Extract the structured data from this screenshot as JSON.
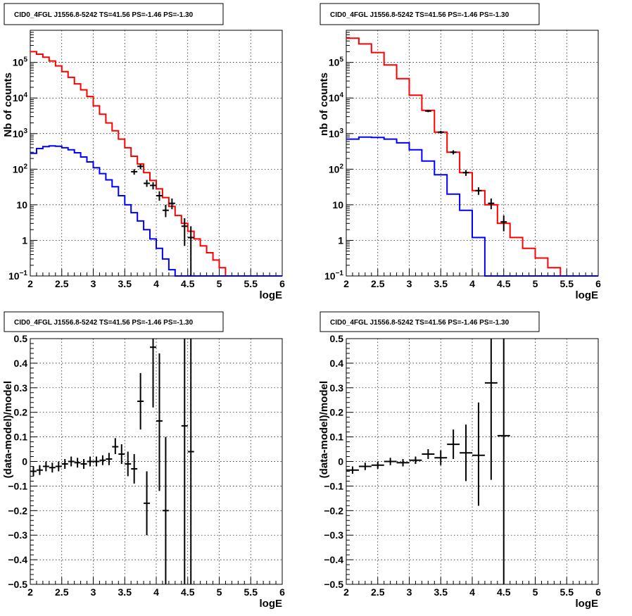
{
  "chart_data": [
    {
      "type": "line",
      "title": "CID0_4FGL J1556.8-5242 TS=41.56 PS=-1.46 PS=-1.30",
      "xlabel": "logE",
      "ylabel": "Nb of counts",
      "log_y": true,
      "xlim": [
        2,
        6
      ],
      "ylim": [
        0.1,
        800000
      ],
      "grid": true,
      "xticks": [
        "2",
        "2.5",
        "3",
        "3.5",
        "4",
        "4.5",
        "5",
        "5.5",
        "6"
      ],
      "yticks": [
        {
          "v": 0.1,
          "base": "10",
          "exp": "−1"
        },
        {
          "v": 1,
          "label": "1"
        },
        {
          "v": 10,
          "label": "10"
        },
        {
          "v": 100,
          "base": "10",
          "exp": "2"
        },
        {
          "v": 1000,
          "base": "10",
          "exp": "3"
        },
        {
          "v": 10000,
          "base": "10",
          "exp": "4"
        },
        {
          "v": 100000,
          "base": "10",
          "exp": "5"
        }
      ],
      "bin_edges": [
        2.0,
        2.1,
        2.2,
        2.3,
        2.4,
        2.5,
        2.6,
        2.7,
        2.8,
        2.9,
        3.0,
        3.1,
        3.2,
        3.3,
        3.4,
        3.5,
        3.6,
        3.7,
        3.8,
        3.9,
        4.0,
        4.1,
        4.2,
        4.3,
        4.4,
        4.5,
        4.6,
        4.7,
        4.8,
        4.9,
        5.0,
        5.1,
        5.2,
        5.3,
        5.4,
        5.5,
        5.6,
        5.7,
        5.8,
        5.9,
        6.0
      ],
      "series": [
        {
          "color": "#ff0000",
          "values": [
            200000,
            170000,
            140000,
            110000,
            80000,
            55000,
            38000,
            25000,
            17000,
            11000,
            6000,
            3500,
            2000,
            1200,
            700,
            400,
            230,
            140,
            80,
            48,
            28,
            16,
            9,
            5,
            3,
            1.8,
            1.1,
            0.7,
            0.45,
            0.28,
            0.17,
            0.1,
            0.1,
            0.1,
            0.1,
            0.1,
            0.1,
            0.1,
            0.1,
            0.1
          ]
        },
        {
          "color": "#0000ff",
          "values": [
            280,
            380,
            430,
            450,
            440,
            400,
            350,
            290,
            220,
            160,
            110,
            75,
            50,
            32,
            18,
            10,
            6,
            3.5,
            2,
            1.1,
            0.6,
            0.3,
            0.15,
            0.1,
            0.1,
            0.1,
            0.1,
            0.1,
            0.1,
            0.1,
            0.1,
            0.1,
            0.1,
            0.1,
            0.1,
            0.1,
            0.1,
            0.1,
            0.1,
            0.1
          ]
        }
      ],
      "points": [
        {
          "x": 3.65,
          "y": 85,
          "lo": 70,
          "hi": 100
        },
        {
          "x": 3.75,
          "y": 120,
          "lo": 100,
          "hi": 140
        },
        {
          "x": 3.85,
          "y": 40,
          "lo": 32,
          "hi": 50
        },
        {
          "x": 3.95,
          "y": 35,
          "lo": 27,
          "hi": 43
        },
        {
          "x": 4.05,
          "y": 18,
          "lo": 13,
          "hi": 24
        },
        {
          "x": 4.15,
          "y": 7,
          "lo": 4.5,
          "hi": 10
        },
        {
          "x": 4.25,
          "y": 11,
          "lo": 7.5,
          "hi": 15
        },
        {
          "x": 4.45,
          "y": 2.5,
          "lo": 0.7,
          "hi": 4.2
        },
        {
          "x": 4.55,
          "y": 1.2,
          "lo": 0.1,
          "hi": 2.5
        }
      ]
    },
    {
      "type": "line",
      "title": "CID0_4FGL J1556.8-5242 TS=41.56 PS=-1.46 PS=-1.30",
      "xlabel": "logE",
      "ylabel": "nb of counts",
      "log_y": true,
      "xlim": [
        2,
        6
      ],
      "ylim": [
        0.1,
        800000
      ],
      "grid": true,
      "xticks": [
        "2",
        "2.5",
        "3",
        "3.5",
        "4",
        "4.5",
        "5",
        "5.5",
        "6"
      ],
      "yticks": [
        {
          "v": 0.1,
          "base": "10",
          "exp": "−1"
        },
        {
          "v": 1,
          "label": "1"
        },
        {
          "v": 10,
          "label": "10"
        },
        {
          "v": 100,
          "base": "10",
          "exp": "2"
        },
        {
          "v": 1000,
          "base": "10",
          "exp": "3"
        },
        {
          "v": 10000,
          "base": "10",
          "exp": "4"
        },
        {
          "v": 100000,
          "base": "10",
          "exp": "5"
        }
      ],
      "bin_edges": [
        2.0,
        2.2,
        2.4,
        2.6,
        2.8,
        3.0,
        3.2,
        3.4,
        3.6,
        3.8,
        4.0,
        4.2,
        4.4,
        4.6,
        4.8,
        5.0,
        5.2,
        5.4,
        5.6,
        5.8,
        6.0
      ],
      "series": [
        {
          "color": "#ff0000",
          "values": [
            480000,
            330000,
            190000,
            85000,
            35000,
            12000,
            4500,
            1100,
            300,
            80,
            25,
            10,
            3,
            1.2,
            0.6,
            0.32,
            0.17,
            0.1,
            0.1,
            0.1
          ]
        },
        {
          "color": "#0000ff",
          "values": [
            700,
            800,
            780,
            700,
            550,
            350,
            170,
            70,
            20,
            7,
            1.2,
            0.1,
            0.1,
            0.1,
            0.1,
            0.1,
            0.1,
            0.1,
            0.1,
            0.1
          ]
        }
      ],
      "points": [
        {
          "x": 3.3,
          "y": 4300,
          "lo": 4000,
          "hi": 4600
        },
        {
          "x": 3.5,
          "y": 1100,
          "lo": 1000,
          "hi": 1200
        },
        {
          "x": 3.7,
          "y": 300,
          "lo": 260,
          "hi": 340
        },
        {
          "x": 3.9,
          "y": 80,
          "lo": 65,
          "hi": 95
        },
        {
          "x": 4.1,
          "y": 25,
          "lo": 19,
          "hi": 31
        },
        {
          "x": 4.3,
          "y": 11,
          "lo": 7.5,
          "hi": 15
        },
        {
          "x": 4.5,
          "y": 3.3,
          "lo": 1.8,
          "hi": 5
        }
      ]
    },
    {
      "type": "scatter",
      "title": "CID0_4FGL J1556.8-5242 TS=41.56 PS=-1.46 PS=-1.30",
      "xlabel": "logE",
      "ylabel": "(data-model)/model",
      "log_y": false,
      "xlim": [
        2,
        6
      ],
      "ylim": [
        -0.5,
        0.5
      ],
      "grid": true,
      "xticks": [
        "2",
        "2.5",
        "3",
        "3.5",
        "4",
        "4.5",
        "5",
        "5.5",
        "6"
      ],
      "yticks": [
        {
          "v": -0.5,
          "label": "−0.5"
        },
        {
          "v": -0.4,
          "label": "−0.4"
        },
        {
          "v": -0.3,
          "label": "−0.3"
        },
        {
          "v": -0.2,
          "label": "−0.2"
        },
        {
          "v": -0.1,
          "label": "−0.1"
        },
        {
          "v": 0,
          "label": "0"
        },
        {
          "v": 0.1,
          "label": "0.1"
        },
        {
          "v": 0.2,
          "label": "0.2"
        },
        {
          "v": 0.3,
          "label": "0.3"
        },
        {
          "v": 0.4,
          "label": "0.4"
        },
        {
          "v": 0.5,
          "label": "0.5"
        }
      ],
      "xerr": 0.05,
      "points": [
        {
          "x": 2.05,
          "y": -0.04,
          "lo": -0.06,
          "hi": -0.02
        },
        {
          "x": 2.15,
          "y": -0.035,
          "lo": -0.055,
          "hi": -0.015
        },
        {
          "x": 2.25,
          "y": -0.02,
          "lo": -0.04,
          "hi": 0.0
        },
        {
          "x": 2.35,
          "y": -0.025,
          "lo": -0.045,
          "hi": -0.005
        },
        {
          "x": 2.45,
          "y": -0.02,
          "lo": -0.04,
          "hi": 0.0
        },
        {
          "x": 2.55,
          "y": -0.01,
          "lo": -0.03,
          "hi": 0.01
        },
        {
          "x": 2.65,
          "y": 0.0,
          "lo": -0.02,
          "hi": 0.02
        },
        {
          "x": 2.75,
          "y": -0.005,
          "lo": -0.025,
          "hi": 0.015
        },
        {
          "x": 2.85,
          "y": -0.01,
          "lo": -0.03,
          "hi": 0.01
        },
        {
          "x": 2.95,
          "y": 0.0,
          "lo": -0.02,
          "hi": 0.02
        },
        {
          "x": 3.05,
          "y": 0.0,
          "lo": -0.02,
          "hi": 0.02
        },
        {
          "x": 3.15,
          "y": 0.005,
          "lo": -0.015,
          "hi": 0.025
        },
        {
          "x": 3.25,
          "y": 0.01,
          "lo": -0.015,
          "hi": 0.035
        },
        {
          "x": 3.35,
          "y": 0.06,
          "lo": 0.03,
          "hi": 0.095
        },
        {
          "x": 3.45,
          "y": 0.03,
          "lo": -0.01,
          "hi": 0.07
        },
        {
          "x": 3.55,
          "y": -0.01,
          "lo": -0.06,
          "hi": 0.04
        },
        {
          "x": 3.65,
          "y": -0.03,
          "lo": -0.09,
          "hi": 0.03
        },
        {
          "x": 3.75,
          "y": 0.245,
          "lo": 0.13,
          "hi": 0.36
        },
        {
          "x": 3.85,
          "y": -0.17,
          "lo": -0.3,
          "hi": -0.04
        },
        {
          "x": 3.95,
          "y": 0.465,
          "lo": 0.22,
          "hi": 0.5
        },
        {
          "x": 4.05,
          "y": 0.165,
          "lo": -0.12,
          "hi": 0.44
        },
        {
          "x": 4.15,
          "y": -0.2,
          "lo": -0.5,
          "hi": 0.1
        },
        {
          "x": 4.45,
          "y": 0.145,
          "lo": -0.5,
          "hi": 0.5
        },
        {
          "x": 4.55,
          "y": 0.04,
          "lo": -0.5,
          "hi": 0.5
        }
      ]
    },
    {
      "type": "scatter",
      "title": "CID0_4FGL J1556.8-5242 TS=41.56 PS=-1.46 PS=-1.30",
      "xlabel": "logE",
      "ylabel": "(data-model)/model",
      "log_y": false,
      "xlim": [
        2,
        6
      ],
      "ylim": [
        -0.5,
        0.5
      ],
      "grid": true,
      "xticks": [
        "2",
        "2.5",
        "3",
        "3.5",
        "4",
        "4.5",
        "5",
        "5.5",
        "6"
      ],
      "yticks": [
        {
          "v": -0.5,
          "label": "−0.5"
        },
        {
          "v": -0.4,
          "label": "−0.4"
        },
        {
          "v": -0.3,
          "label": "−0.3"
        },
        {
          "v": -0.2,
          "label": "−0.2"
        },
        {
          "v": -0.1,
          "label": "−0.1"
        },
        {
          "v": 0,
          "label": "0"
        },
        {
          "v": 0.1,
          "label": "0.1"
        },
        {
          "v": 0.2,
          "label": "0.2"
        },
        {
          "v": 0.3,
          "label": "0.3"
        },
        {
          "v": 0.4,
          "label": "0.4"
        },
        {
          "v": 0.5,
          "label": "0.5"
        }
      ],
      "xerr": 0.1,
      "points": [
        {
          "x": 2.1,
          "y": -0.035,
          "lo": -0.05,
          "hi": -0.02
        },
        {
          "x": 2.3,
          "y": -0.02,
          "lo": -0.035,
          "hi": -0.005
        },
        {
          "x": 2.5,
          "y": -0.015,
          "lo": -0.03,
          "hi": 0.0
        },
        {
          "x": 2.7,
          "y": 0.0,
          "lo": -0.015,
          "hi": 0.015
        },
        {
          "x": 2.9,
          "y": -0.005,
          "lo": -0.02,
          "hi": 0.01
        },
        {
          "x": 3.1,
          "y": 0.005,
          "lo": -0.01,
          "hi": 0.02
        },
        {
          "x": 3.3,
          "y": 0.03,
          "lo": 0.01,
          "hi": 0.05
        },
        {
          "x": 3.5,
          "y": 0.015,
          "lo": -0.015,
          "hi": 0.045
        },
        {
          "x": 3.7,
          "y": 0.07,
          "lo": 0.01,
          "hi": 0.13
        },
        {
          "x": 3.9,
          "y": 0.035,
          "lo": -0.08,
          "hi": 0.15
        },
        {
          "x": 4.1,
          "y": 0.025,
          "lo": -0.18,
          "hi": 0.24
        },
        {
          "x": 4.3,
          "y": 0.32,
          "lo": -0.075,
          "hi": 0.5
        },
        {
          "x": 4.5,
          "y": 0.105,
          "lo": -0.5,
          "hi": 0.5
        }
      ]
    }
  ]
}
